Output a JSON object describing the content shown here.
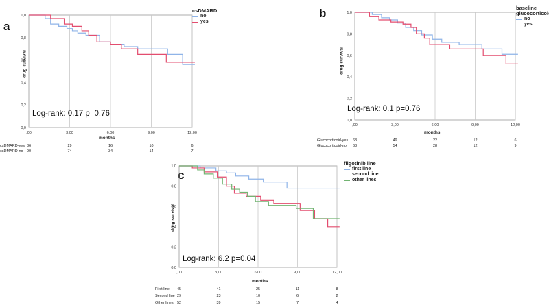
{
  "chart_data": [
    {
      "panel": "a",
      "type": "line",
      "step": true,
      "xlabel": "months",
      "ylabel": "drug survival",
      "x_ticks": [
        ",00",
        "3,00",
        "6,00",
        "9,00",
        "12,00"
      ],
      "y_ticks": [
        "0,0",
        "0,2",
        "0,4",
        "0,6",
        "0,8",
        "1,0"
      ],
      "xlim": [
        0,
        12
      ],
      "ylim": [
        0,
        1
      ],
      "grid": "vertical",
      "legend_title": "csDMARD",
      "legend_position": "top-right",
      "annotation": "Log-rank: 0.17 p=0.76",
      "series": [
        {
          "name": "no",
          "color": "#8fb4e8",
          "x": [
            0,
            1.2,
            1.6,
            2.2,
            2.8,
            3.2,
            3.6,
            4.2,
            5.2,
            6.0,
            7.0,
            8.0,
            10.2,
            11.3,
            12.2
          ],
          "y": [
            1.0,
            0.97,
            0.92,
            0.9,
            0.88,
            0.86,
            0.84,
            0.82,
            0.76,
            0.74,
            0.72,
            0.7,
            0.65,
            0.56,
            0.56
          ]
        },
        {
          "name": "yes",
          "color": "#e34d6f",
          "x": [
            0,
            1.6,
            2.6,
            3.2,
            3.9,
            4.4,
            5.0,
            6.0,
            6.8,
            8.0,
            10.1,
            12.2
          ],
          "y": [
            1.0,
            0.97,
            0.92,
            0.9,
            0.86,
            0.82,
            0.76,
            0.74,
            0.7,
            0.65,
            0.58,
            0.58
          ]
        }
      ],
      "risk_table": {
        "rows": [
          {
            "label": "csDMARD-yes",
            "values": [
              "36",
              "29",
              "16",
              "10",
              "6"
            ]
          },
          {
            "label": "csDMARD-no",
            "values": [
              "90",
              "74",
              "34",
              "14",
              "7"
            ]
          }
        ]
      }
    },
    {
      "panel": "b",
      "type": "line",
      "step": true,
      "xlabel": "months",
      "ylabel": "drug survival",
      "x_ticks": [
        ",00",
        "3,00",
        "6,00",
        "9,00",
        "12,00"
      ],
      "y_ticks": [
        "0,0",
        "0,2",
        "0,4",
        "0,6",
        "0,8",
        "1,0"
      ],
      "xlim": [
        0,
        12
      ],
      "ylim": [
        0,
        1
      ],
      "grid": "vertical",
      "legend_title": "baseline glucocorticoid",
      "legend_position": "top-right",
      "annotation": "Log-rank: 0.1 p=0.76",
      "series": [
        {
          "name": "no",
          "color": "#8fb4e8",
          "x": [
            0,
            1.3,
            2.0,
            2.6,
            3.2,
            3.8,
            4.4,
            5.0,
            5.8,
            6.5,
            7.8,
            9.5,
            11.0,
            12.2
          ],
          "y": [
            1.0,
            0.98,
            0.95,
            0.93,
            0.9,
            0.86,
            0.83,
            0.79,
            0.75,
            0.72,
            0.7,
            0.66,
            0.61,
            0.61
          ]
        },
        {
          "name": "yes",
          "color": "#e34d6f",
          "x": [
            0,
            1.1,
            1.8,
            2.7,
            3.6,
            4.2,
            4.6,
            5.2,
            5.6,
            7.1,
            9.6,
            11.3,
            12.2
          ],
          "y": [
            1.0,
            0.96,
            0.93,
            0.91,
            0.89,
            0.86,
            0.8,
            0.76,
            0.7,
            0.66,
            0.6,
            0.52,
            0.52
          ]
        }
      ],
      "risk_table": {
        "rows": [
          {
            "label": "Glucocorticoid-yes",
            "values": [
              "63",
              "49",
              "22",
              "12",
              "6"
            ]
          },
          {
            "label": "Glucocorticoid-no",
            "values": [
              "63",
              "54",
              "28",
              "12",
              "9"
            ]
          }
        ]
      }
    },
    {
      "panel": "c",
      "type": "line",
      "step": true,
      "xlabel": "months",
      "ylabel": "drug survival",
      "x_ticks": [
        ",00",
        "3,00",
        "6,00",
        "9,00",
        "12,00"
      ],
      "y_ticks": [
        "0,0",
        "0,2",
        "0,4",
        "0,6",
        "0,8",
        "1,0"
      ],
      "xlim": [
        0,
        12
      ],
      "ylim": [
        0,
        1
      ],
      "grid": "vertical",
      "legend_title": "filgotinib line",
      "legend_position": "top-right",
      "annotation": "Log-rank: 6.2 p=0.04",
      "series": [
        {
          "name": "first line",
          "color": "#8fb4e8",
          "x": [
            0,
            1.6,
            2.8,
            3.6,
            4.3,
            5.3,
            6.4,
            8.2,
            12.2
          ],
          "y": [
            1.0,
            0.98,
            0.95,
            0.93,
            0.9,
            0.87,
            0.84,
            0.78,
            0.78
          ]
        },
        {
          "name": "second line",
          "color": "#e34d6f",
          "x": [
            0,
            1.0,
            1.9,
            2.9,
            3.6,
            4.2,
            5.1,
            6.2,
            7.2,
            9.2,
            10.3,
            11.3,
            12.2
          ],
          "y": [
            1.0,
            0.98,
            0.94,
            0.89,
            0.8,
            0.73,
            0.7,
            0.66,
            0.63,
            0.56,
            0.48,
            0.4,
            0.4
          ]
        },
        {
          "name": "other lines",
          "color": "#72b472",
          "x": [
            0,
            1.4,
            1.9,
            2.6,
            3.3,
            4.0,
            4.6,
            5.2,
            5.8,
            6.8,
            8.9,
            10.2,
            12.2
          ],
          "y": [
            1.0,
            0.96,
            0.92,
            0.88,
            0.82,
            0.77,
            0.74,
            0.7,
            0.65,
            0.61,
            0.58,
            0.48,
            0.48
          ]
        }
      ],
      "risk_table": {
        "rows": [
          {
            "label": "First line",
            "values": [
              "45",
              "41",
              "25",
              "11",
              "8"
            ]
          },
          {
            "label": "Second line",
            "values": [
              "29",
              "23",
              "10",
              "6",
              "2"
            ]
          },
          {
            "label": "Other lines",
            "values": [
              "52",
              "39",
              "15",
              "7",
              "4"
            ]
          }
        ]
      }
    }
  ]
}
